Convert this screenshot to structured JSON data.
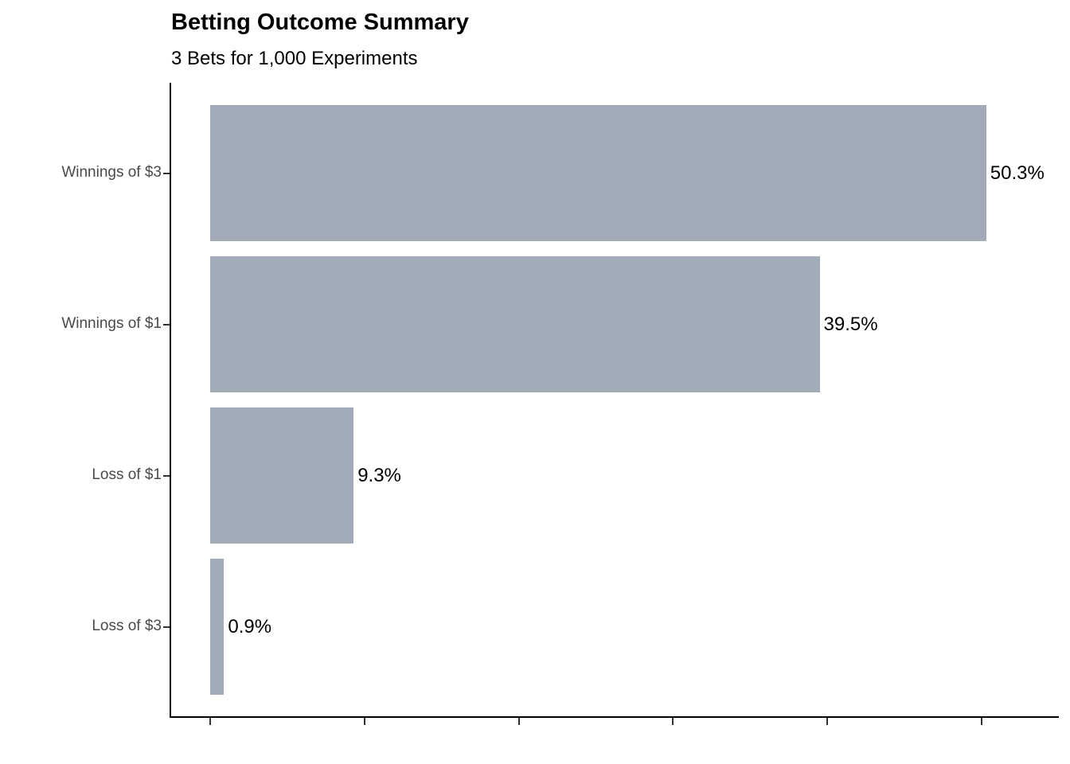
{
  "chart_data": {
    "type": "bar",
    "orientation": "horizontal",
    "title": "Betting Outcome Summary",
    "subtitle": "3 Bets for 1,000 Experiments",
    "categories": [
      "Winnings of $3",
      "Winnings of $1",
      "Loss of $1",
      "Loss of $3"
    ],
    "values": [
      50.3,
      39.5,
      9.3,
      0.9
    ],
    "value_labels": [
      "50.3%",
      "39.5%",
      "9.3%",
      "0.9%"
    ],
    "xlabel": "",
    "ylabel": "",
    "xlim": [
      0,
      55
    ],
    "x_ticks": [
      0,
      10,
      20,
      30,
      40,
      50
    ],
    "x_tick_labels_shown": false,
    "grid": false,
    "legend": "none",
    "bar_color": "#A1ACB8",
    "axis_color": "#000000",
    "tick_color": "#333333",
    "value_label_color": "#000000",
    "category_label_color": "#4A4A4A",
    "title_color": "#000000",
    "background_color": "#FFFFFF"
  }
}
